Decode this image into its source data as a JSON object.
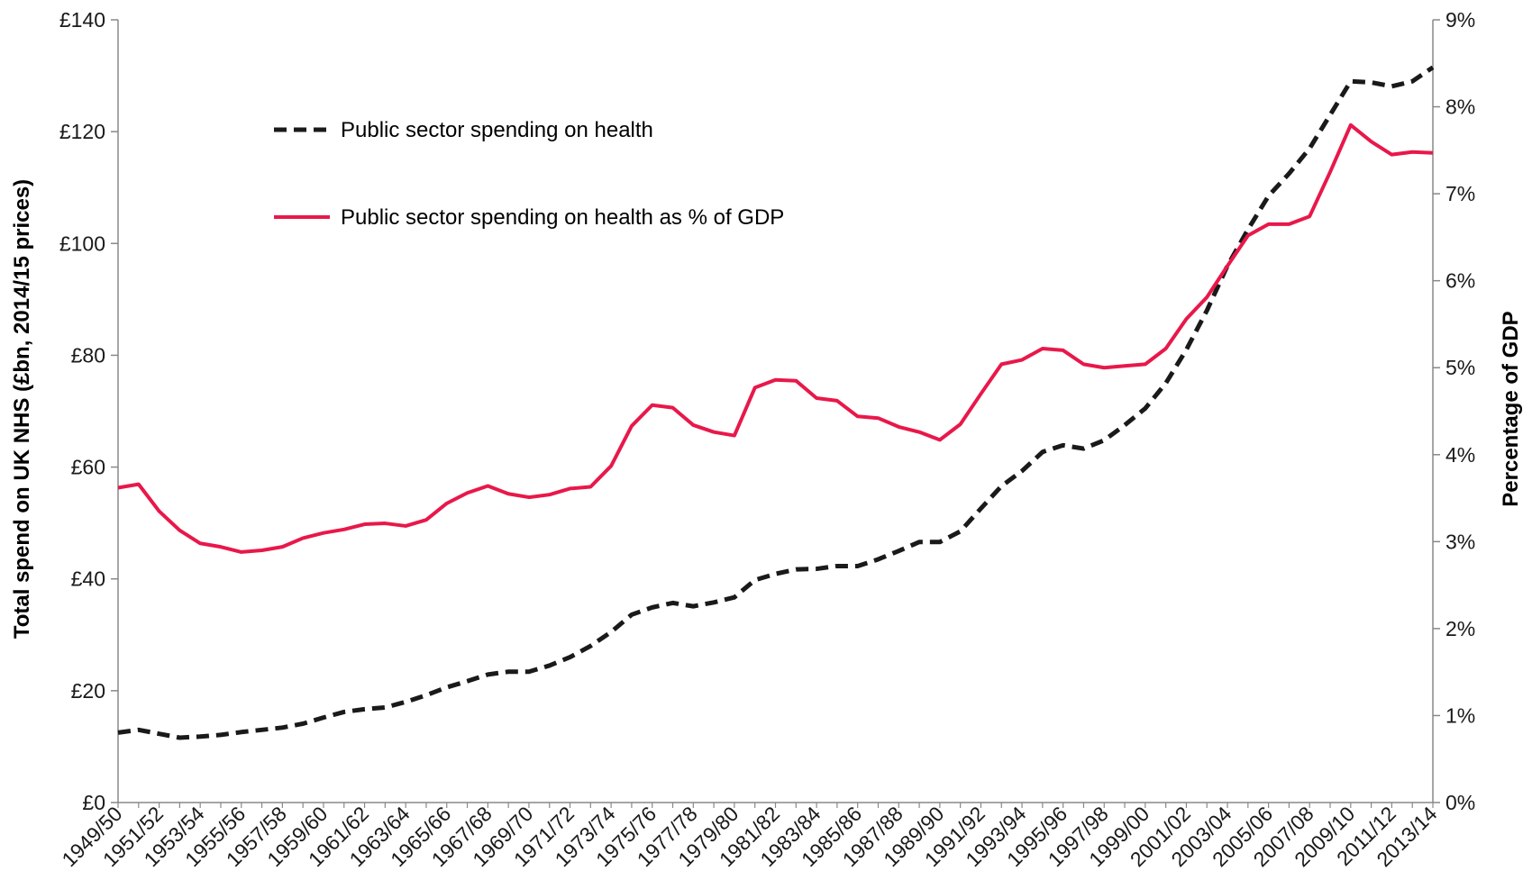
{
  "chart_data": {
    "type": "line",
    "title": "",
    "ylabel": "Total spend on UK NHS (£bn, 2014/15 prices)",
    "y2label": "Percentage of GDP",
    "ylim": [
      0,
      140
    ],
    "y2lim": [
      0,
      9
    ],
    "yticks": [
      "£0",
      "£20",
      "£40",
      "£60",
      "£80",
      "£100",
      "£120",
      "£140"
    ],
    "y2ticks": [
      "0%",
      "1%",
      "2%",
      "3%",
      "4%",
      "5%",
      "6%",
      "7%",
      "8%",
      "9%"
    ],
    "legend_position": "top-left",
    "grid": false,
    "colors": {
      "spend": "#1a1a1a",
      "gdp": "#e8184a",
      "axis": "#888888"
    },
    "x": [
      "1949/50",
      "1950/51",
      "1951/52",
      "1952/53",
      "1953/54",
      "1954/55",
      "1955/56",
      "1956/57",
      "1957/58",
      "1958/59",
      "1959/60",
      "1960/61",
      "1961/62",
      "1962/63",
      "1963/64",
      "1964/65",
      "1965/66",
      "1966/67",
      "1967/68",
      "1968/69",
      "1969/70",
      "1970/71",
      "1971/72",
      "1972/73",
      "1973/74",
      "1974/75",
      "1975/76",
      "1976/77",
      "1977/78",
      "1978/79",
      "1979/80",
      "1980/81",
      "1981/82",
      "1982/83",
      "1983/84",
      "1984/85",
      "1985/86",
      "1986/87",
      "1987/88",
      "1988/89",
      "1989/90",
      "1990/91",
      "1991/92",
      "1992/93",
      "1993/94",
      "1994/95",
      "1995/96",
      "1996/97",
      "1997/98",
      "1998/99",
      "1999/00",
      "2000/01",
      "2001/02",
      "2002/03",
      "2003/04",
      "2004/05",
      "2005/06",
      "2006/07",
      "2007/08",
      "2008/09",
      "2009/10",
      "2010/11",
      "2011/12",
      "2012/13",
      "2013/14"
    ],
    "series": [
      {
        "name": "Public sector spending on health",
        "axis": "left",
        "style": "dashed",
        "values": [
          12.5,
          13.0,
          12.3,
          11.6,
          11.8,
          12.1,
          12.6,
          13.0,
          13.4,
          14.1,
          15.2,
          16.2,
          16.7,
          17.0,
          18.0,
          19.2,
          20.6,
          21.7,
          22.9,
          23.4,
          23.4,
          24.5,
          26.0,
          28.0,
          30.5,
          33.6,
          34.9,
          35.7,
          35.1,
          35.8,
          36.7,
          39.8,
          40.9,
          41.7,
          41.8,
          42.3,
          42.3,
          43.5,
          45.0,
          46.6,
          46.6,
          48.5,
          52.6,
          56.6,
          59.3,
          62.7,
          63.9,
          63.3,
          64.8,
          67.5,
          70.5,
          75.0,
          81.0,
          88.0,
          96.0,
          102.5,
          108.5,
          112.5,
          117.0,
          123.0,
          129.0,
          128.8,
          128.1,
          129.0,
          131.5
        ]
      },
      {
        "name": "Public sector spending on health as % of GDP",
        "axis": "right",
        "style": "solid",
        "values": [
          3.62,
          3.66,
          3.35,
          3.13,
          2.98,
          2.94,
          2.88,
          2.9,
          2.94,
          3.04,
          3.1,
          3.14,
          3.2,
          3.21,
          3.18,
          3.25,
          3.44,
          3.56,
          3.64,
          3.55,
          3.51,
          3.54,
          3.61,
          3.63,
          3.87,
          4.33,
          4.57,
          4.54,
          4.34,
          4.26,
          4.22,
          4.77,
          4.86,
          4.85,
          4.65,
          4.62,
          4.44,
          4.42,
          4.32,
          4.26,
          4.17,
          4.35,
          4.7,
          5.04,
          5.09,
          5.22,
          5.2,
          5.04,
          5.0,
          5.02,
          5.04,
          5.22,
          5.56,
          5.81,
          6.17,
          6.52,
          6.65,
          6.65,
          6.74,
          7.25,
          7.79,
          7.6,
          7.45,
          7.48,
          7.47
        ]
      }
    ]
  }
}
